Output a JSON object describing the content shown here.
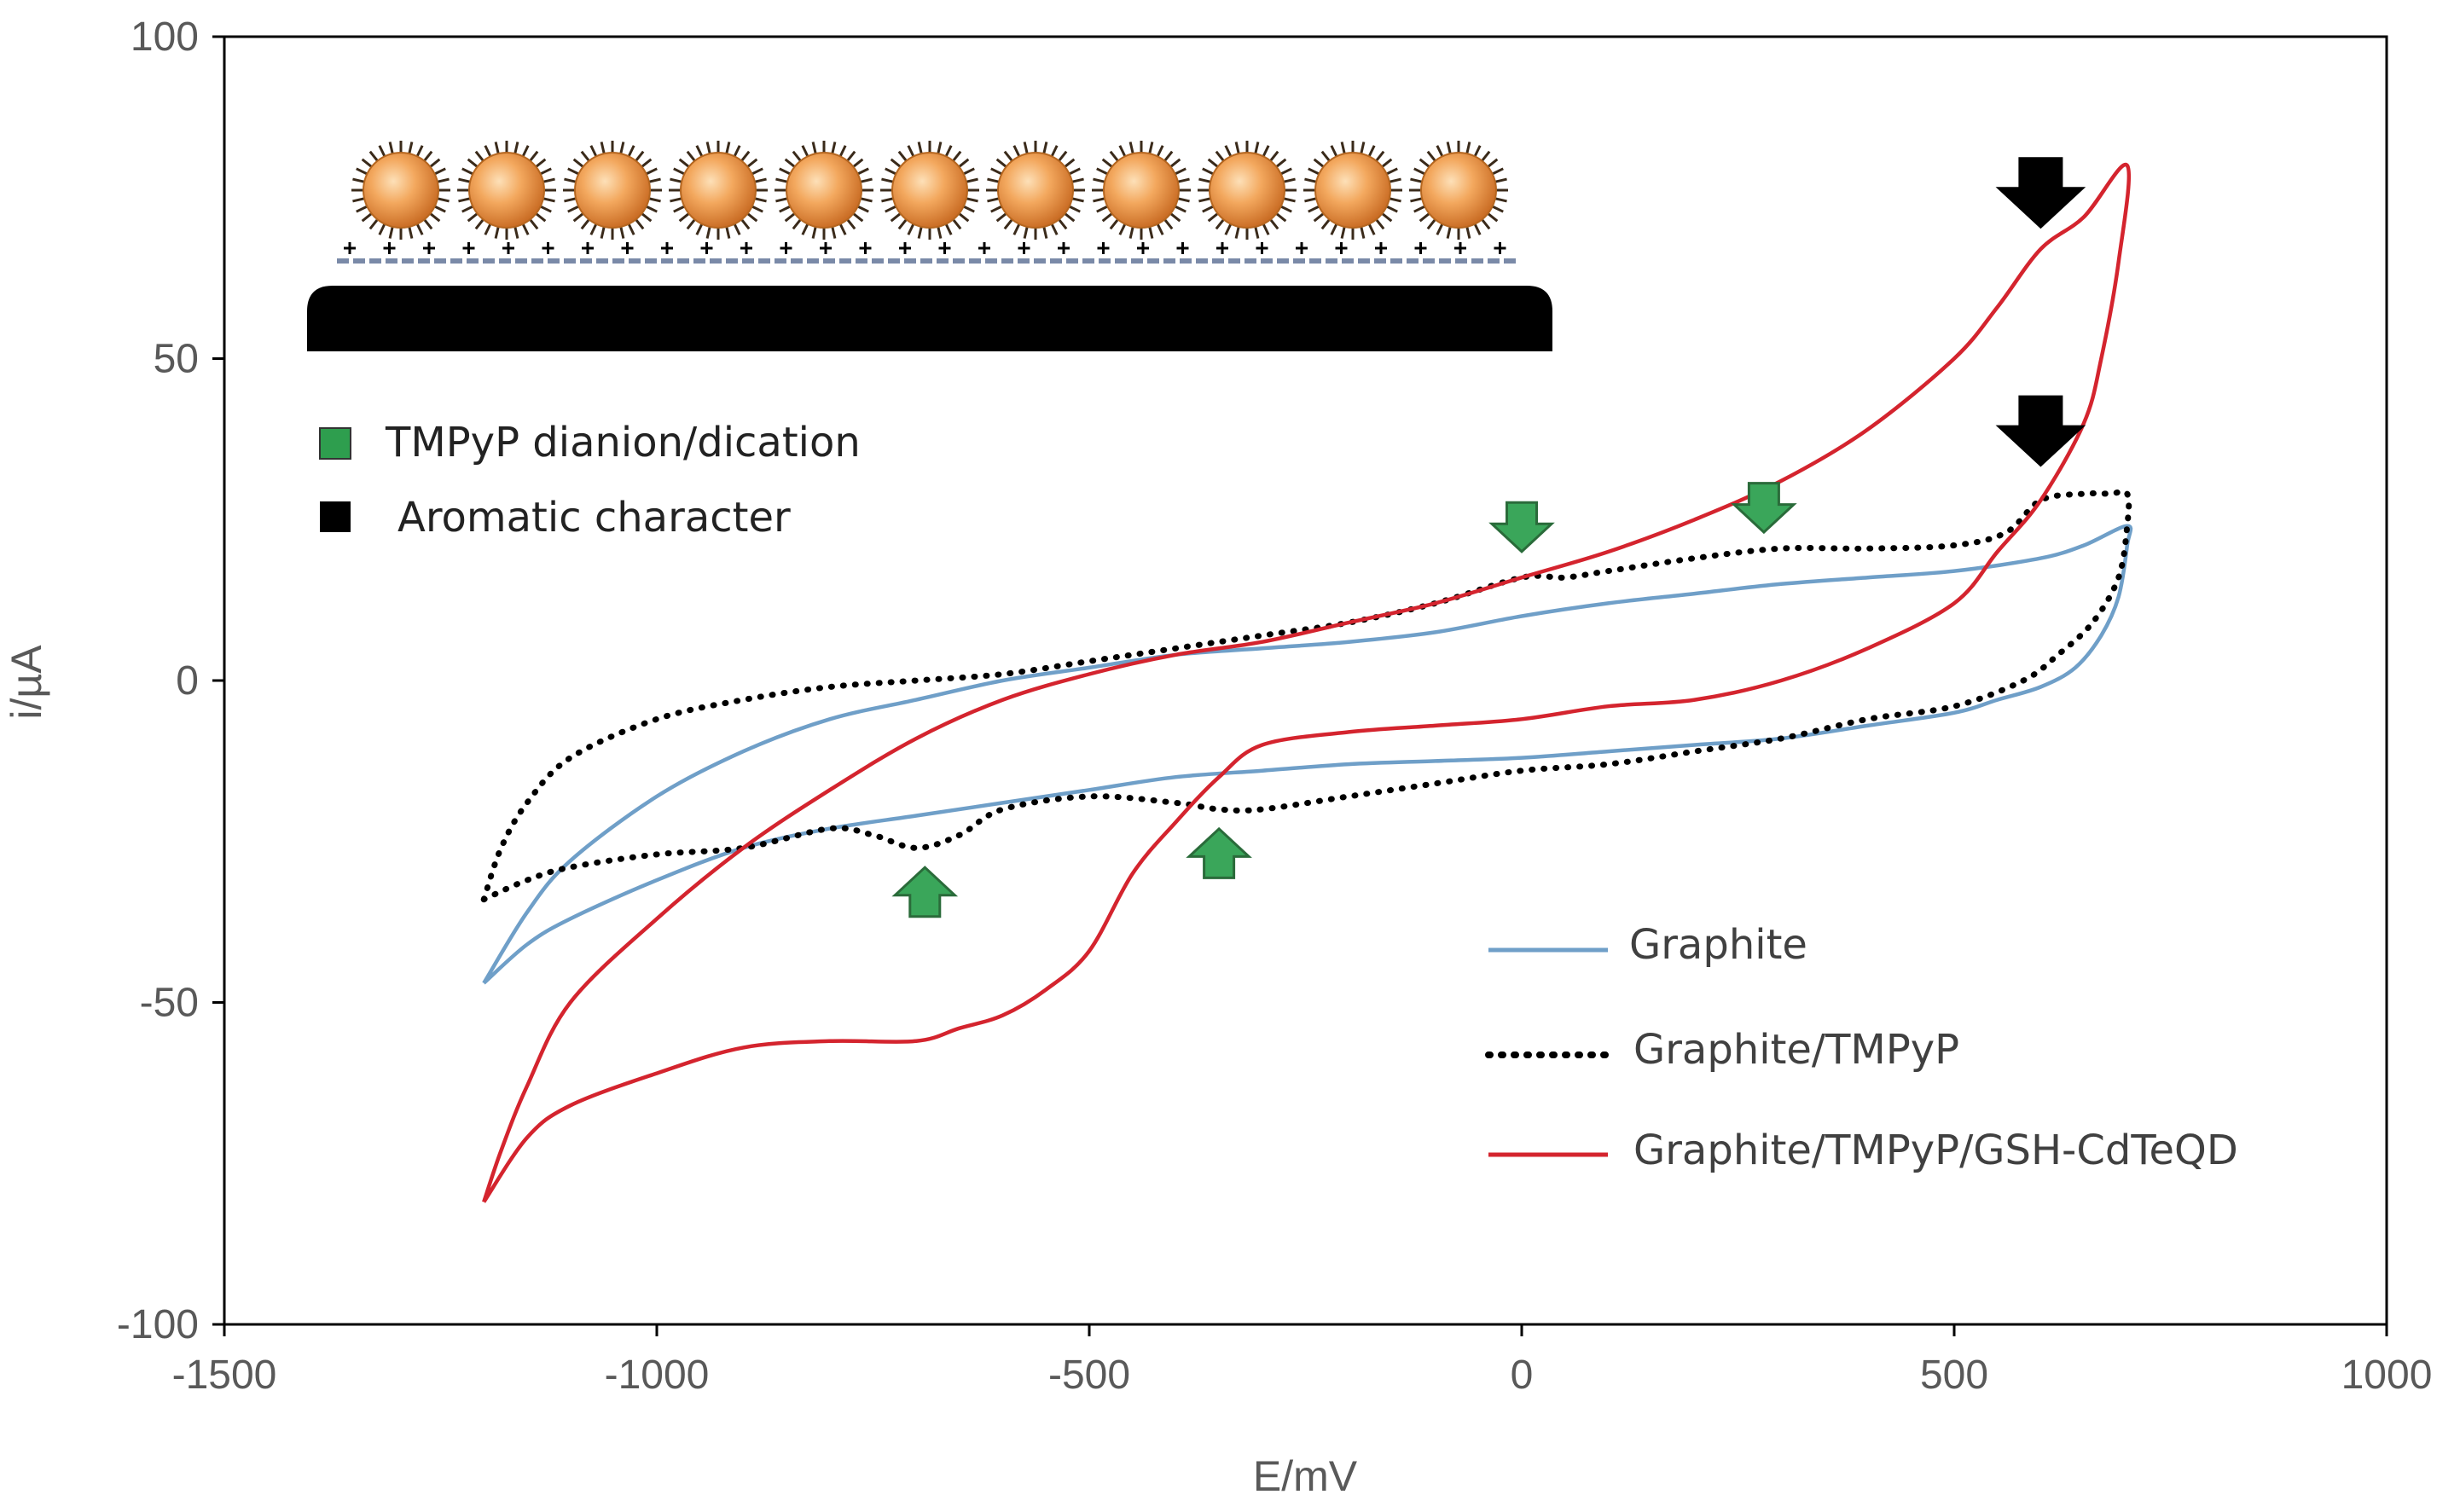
{
  "chart_data": {
    "type": "line",
    "xlabel": "E/mV",
    "ylabel": "i/µA",
    "xlim": [
      -1500,
      1000
    ],
    "ylim": [
      -100,
      100
    ],
    "x_ticks": [
      -1500,
      -1000,
      -500,
      0,
      500,
      1000
    ],
    "y_ticks": [
      -100,
      -50,
      0,
      50,
      100
    ],
    "x_tick_labels": [
      "-1500",
      "-1000",
      "-500",
      "0",
      "500",
      "1000"
    ],
    "y_tick_labels": [
      "-100",
      "-50",
      "0",
      "50",
      "100"
    ],
    "grid": false,
    "legend_position": "bottom-right",
    "series": [
      {
        "name": "Graphite",
        "color": "#6f9fc8",
        "style": "solid",
        "points": [
          [
            -1200,
            -47
          ],
          [
            -1150,
            -36
          ],
          [
            -1100,
            -28
          ],
          [
            -1000,
            -18
          ],
          [
            -900,
            -11
          ],
          [
            -800,
            -6
          ],
          [
            -700,
            -3
          ],
          [
            -600,
            0
          ],
          [
            -500,
            2
          ],
          [
            -400,
            4
          ],
          [
            -300,
            5
          ],
          [
            -200,
            6
          ],
          [
            -100,
            7.5
          ],
          [
            0,
            10
          ],
          [
            100,
            12
          ],
          [
            200,
            13.5
          ],
          [
            300,
            15
          ],
          [
            400,
            16
          ],
          [
            500,
            17
          ],
          [
            600,
            19
          ],
          [
            650,
            21
          ],
          [
            700,
            24
          ],
          [
            700,
            21
          ],
          [
            690,
            13
          ],
          [
            670,
            7
          ],
          [
            640,
            2
          ],
          [
            600,
            -1
          ],
          [
            550,
            -3
          ],
          [
            500,
            -5
          ],
          [
            400,
            -7
          ],
          [
            300,
            -9
          ],
          [
            200,
            -10
          ],
          [
            100,
            -11
          ],
          [
            0,
            -12
          ],
          [
            -100,
            -12.5
          ],
          [
            -200,
            -13
          ],
          [
            -300,
            -14
          ],
          [
            -400,
            -15
          ],
          [
            -500,
            -17
          ],
          [
            -600,
            -19
          ],
          [
            -700,
            -21
          ],
          [
            -800,
            -23
          ],
          [
            -900,
            -26
          ],
          [
            -1000,
            -31
          ],
          [
            -1100,
            -37
          ],
          [
            -1150,
            -41
          ],
          [
            -1200,
            -47
          ]
        ]
      },
      {
        "name": "Graphite/TMPyP",
        "color": "#000000",
        "style": "dotted",
        "points": [
          [
            -1200,
            -34
          ],
          [
            -1180,
            -26
          ],
          [
            -1150,
            -19
          ],
          [
            -1100,
            -12
          ],
          [
            -1000,
            -6
          ],
          [
            -900,
            -3
          ],
          [
            -800,
            -1
          ],
          [
            -700,
            0
          ],
          [
            -600,
            1
          ],
          [
            -500,
            3
          ],
          [
            -400,
            5
          ],
          [
            -300,
            7
          ],
          [
            -200,
            9
          ],
          [
            -100,
            12
          ],
          [
            0,
            16
          ],
          [
            50,
            16
          ],
          [
            100,
            17
          ],
          [
            200,
            19
          ],
          [
            300,
            20.5
          ],
          [
            400,
            20.5
          ],
          [
            500,
            21
          ],
          [
            560,
            23
          ],
          [
            600,
            28
          ],
          [
            650,
            29
          ],
          [
            680,
            29
          ],
          [
            700,
            29
          ],
          [
            700,
            24
          ],
          [
            690,
            16
          ],
          [
            660,
            9
          ],
          [
            620,
            4
          ],
          [
            580,
            0
          ],
          [
            500,
            -4
          ],
          [
            400,
            -6
          ],
          [
            300,
            -9
          ],
          [
            200,
            -11
          ],
          [
            100,
            -13
          ],
          [
            0,
            -14
          ],
          [
            -100,
            -16
          ],
          [
            -200,
            -18
          ],
          [
            -300,
            -20
          ],
          [
            -350,
            -20
          ],
          [
            -400,
            -19
          ],
          [
            -500,
            -18
          ],
          [
            -600,
            -20
          ],
          [
            -650,
            -24
          ],
          [
            -700,
            -26
          ],
          [
            -750,
            -24
          ],
          [
            -800,
            -23
          ],
          [
            -900,
            -26
          ],
          [
            -1000,
            -27
          ],
          [
            -1100,
            -29
          ],
          [
            -1150,
            -31
          ],
          [
            -1200,
            -34
          ]
        ]
      },
      {
        "name": "Graphite/TMPyP/GSH-CdTeQD",
        "color": "#d4242e",
        "style": "solid",
        "points": [
          [
            -1200,
            -81
          ],
          [
            -1180,
            -73
          ],
          [
            -1150,
            -63
          ],
          [
            -1100,
            -50
          ],
          [
            -1000,
            -37
          ],
          [
            -900,
            -26
          ],
          [
            -800,
            -17
          ],
          [
            -700,
            -9
          ],
          [
            -600,
            -3
          ],
          [
            -500,
            1
          ],
          [
            -400,
            4
          ],
          [
            -300,
            6
          ],
          [
            -200,
            9
          ],
          [
            -100,
            12
          ],
          [
            0,
            16
          ],
          [
            100,
            20
          ],
          [
            200,
            25
          ],
          [
            300,
            31
          ],
          [
            400,
            39
          ],
          [
            500,
            50
          ],
          [
            550,
            58
          ],
          [
            600,
            67
          ],
          [
            650,
            72
          ],
          [
            700,
            80
          ],
          [
            690,
            65
          ],
          [
            670,
            50
          ],
          [
            650,
            40
          ],
          [
            600,
            28
          ],
          [
            550,
            20
          ],
          [
            500,
            12
          ],
          [
            400,
            5
          ],
          [
            300,
            0
          ],
          [
            200,
            -3
          ],
          [
            100,
            -4
          ],
          [
            0,
            -6
          ],
          [
            -100,
            -7
          ],
          [
            -200,
            -8
          ],
          [
            -300,
            -10
          ],
          [
            -350,
            -15
          ],
          [
            -400,
            -22
          ],
          [
            -450,
            -30
          ],
          [
            -500,
            -42
          ],
          [
            -550,
            -48
          ],
          [
            -600,
            -52
          ],
          [
            -650,
            -54
          ],
          [
            -700,
            -56
          ],
          [
            -800,
            -56
          ],
          [
            -900,
            -57
          ],
          [
            -1000,
            -61
          ],
          [
            -1100,
            -66
          ],
          [
            -1150,
            -71
          ],
          [
            -1200,
            -81
          ]
        ]
      }
    ],
    "annotations": [
      {
        "label": "green up arrow",
        "x": -690,
        "y": -33
      },
      {
        "label": "green up arrow",
        "x": -350,
        "y": -27
      },
      {
        "label": "green down arrow",
        "x": 0,
        "y": 24
      },
      {
        "label": "green down arrow",
        "x": 280,
        "y": 27
      },
      {
        "label": "black down arrow",
        "x": 600,
        "y": 76
      },
      {
        "label": "black down arrow",
        "x": 600,
        "y": 39
      }
    ]
  },
  "inset": {
    "legend_items": [
      {
        "label": "TMPyP dianion/dication",
        "color": "#2e9e4e"
      },
      {
        "label": "Aromatic character",
        "color": "#000000"
      }
    ],
    "nanoparticle_count": 11
  }
}
